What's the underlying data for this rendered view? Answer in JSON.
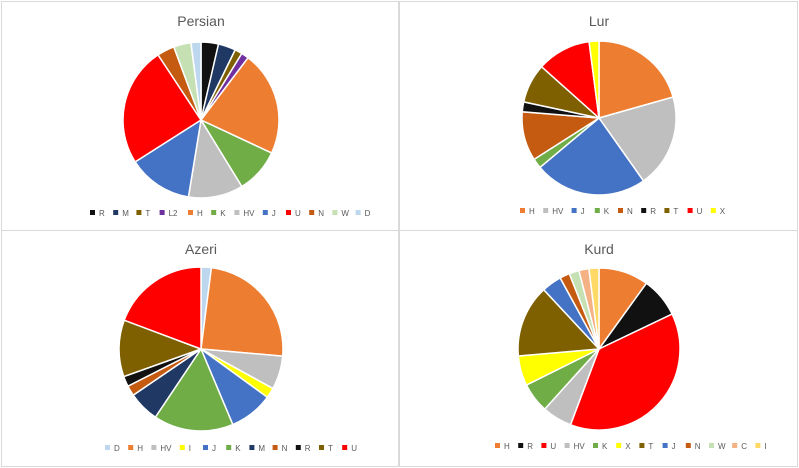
{
  "palette": {
    "black": "#111111",
    "navy": "#1f3864",
    "olive": "#7f6000",
    "purple": "#7030a0",
    "orange": "#ed7d31",
    "green": "#70ad47",
    "gray": "#bfbfbf",
    "blue": "#4472c4",
    "red": "#ff0000",
    "rust": "#c55a11",
    "lightgreen": "#c5e0b3",
    "lightblue": "#bdd7ee",
    "yellow": "#ffff00",
    "peach": "#f4b183",
    "gold": "#ffd966"
  },
  "chart_data": [
    {
      "type": "pie",
      "title": "Persian",
      "legend_position": "bottom",
      "slices": [
        {
          "label": "R",
          "value": 3.5,
          "color": "black"
        },
        {
          "label": "M",
          "value": 3.5,
          "color": "navy"
        },
        {
          "label": "T",
          "value": 1.5,
          "color": "olive"
        },
        {
          "label": "L2",
          "value": 1.5,
          "color": "purple"
        },
        {
          "label": "H",
          "value": 21,
          "color": "orange"
        },
        {
          "label": "K",
          "value": 9,
          "color": "green"
        },
        {
          "label": "HV",
          "value": 11,
          "color": "gray"
        },
        {
          "label": "J",
          "value": 13,
          "color": "blue"
        },
        {
          "label": "U",
          "value": 24,
          "color": "red"
        },
        {
          "label": "N",
          "value": 3.5,
          "color": "rust"
        },
        {
          "label": "W",
          "value": 3.5,
          "color": "lightgreen"
        },
        {
          "label": "D",
          "value": 2,
          "color": "lightblue"
        }
      ]
    },
    {
      "type": "pie",
      "title": "Lur",
      "legend_position": "bottom",
      "slices": [
        {
          "label": "H",
          "value": 20,
          "color": "orange"
        },
        {
          "label": "HV",
          "value": 19,
          "color": "gray"
        },
        {
          "label": "J",
          "value": 23,
          "color": "blue"
        },
        {
          "label": "K",
          "value": 2,
          "color": "green"
        },
        {
          "label": "N",
          "value": 10,
          "color": "rust"
        },
        {
          "label": "R",
          "value": 2,
          "color": "black"
        },
        {
          "label": "T",
          "value": 8,
          "color": "olive"
        },
        {
          "label": "U",
          "value": 11,
          "color": "red"
        },
        {
          "label": "X",
          "value": 2,
          "color": "yellow"
        }
      ]
    },
    {
      "type": "pie",
      "title": "Azeri",
      "legend_position": "bottom",
      "slices": [
        {
          "label": "D",
          "value": 2,
          "color": "lightblue"
        },
        {
          "label": "H",
          "value": 24,
          "color": "orange"
        },
        {
          "label": "HV",
          "value": 6.5,
          "color": "gray"
        },
        {
          "label": "I",
          "value": 2,
          "color": "yellow"
        },
        {
          "label": "J",
          "value": 8.5,
          "color": "blue"
        },
        {
          "label": "K",
          "value": 15.5,
          "color": "green"
        },
        {
          "label": "M",
          "value": 6,
          "color": "navy"
        },
        {
          "label": "N",
          "value": 2,
          "color": "rust"
        },
        {
          "label": "R",
          "value": 2,
          "color": "black"
        },
        {
          "label": "T",
          "value": 11,
          "color": "olive"
        },
        {
          "label": "U",
          "value": 19,
          "color": "red"
        }
      ]
    },
    {
      "type": "pie",
      "title": "Kurd",
      "legend_position": "bottom",
      "slices": [
        {
          "label": "H",
          "value": 10,
          "color": "orange"
        },
        {
          "label": "R",
          "value": 8,
          "color": "black"
        },
        {
          "label": "U",
          "value": 38,
          "color": "red"
        },
        {
          "label": "HV",
          "value": 6,
          "color": "gray"
        },
        {
          "label": "K",
          "value": 6,
          "color": "green"
        },
        {
          "label": "X",
          "value": 6,
          "color": "yellow"
        },
        {
          "label": "T",
          "value": 14.5,
          "color": "olive"
        },
        {
          "label": "J",
          "value": 4,
          "color": "blue"
        },
        {
          "label": "N",
          "value": 2,
          "color": "rust"
        },
        {
          "label": "W",
          "value": 2,
          "color": "lightgreen"
        },
        {
          "label": "C",
          "value": 2,
          "color": "peach"
        },
        {
          "label": "I",
          "value": 2,
          "color": "gold"
        }
      ]
    }
  ]
}
